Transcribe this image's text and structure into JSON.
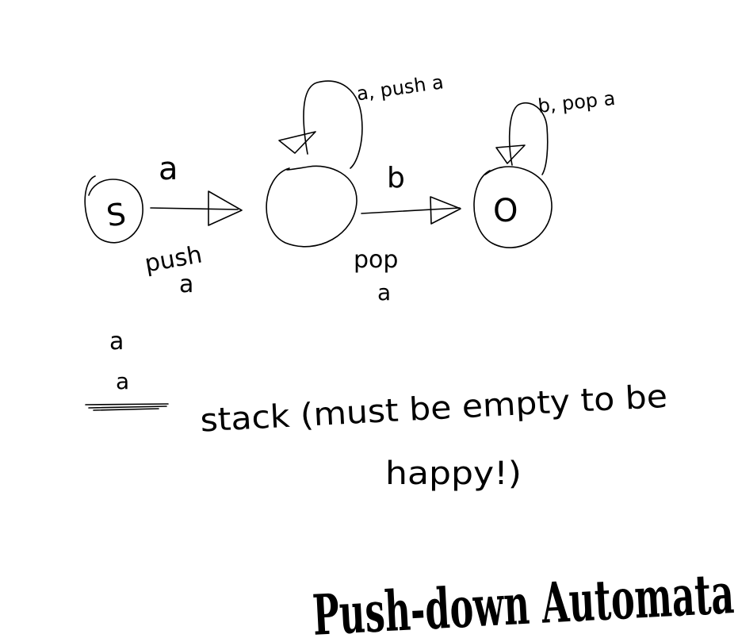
{
  "ink_color": "#000000",
  "background_color": "#ffffff",
  "states": {
    "start": {
      "label": "S"
    },
    "middle": {
      "label": ""
    },
    "accept": {
      "label": "O"
    }
  },
  "transitions": {
    "start_to_middle": {
      "input": "a",
      "action": "push",
      "symbol": "a"
    },
    "middle_self_loop": {
      "label": "a, push a"
    },
    "middle_to_accept": {
      "input": "b",
      "action": "pop",
      "symbol": "a"
    },
    "accept_self_loop": {
      "label": "b, pop a"
    }
  },
  "stack": {
    "items": [
      "a",
      "a"
    ],
    "note_line1": "stack (must be empty to be",
    "note_line2": "happy!)"
  },
  "title": "Push-down Automata"
}
